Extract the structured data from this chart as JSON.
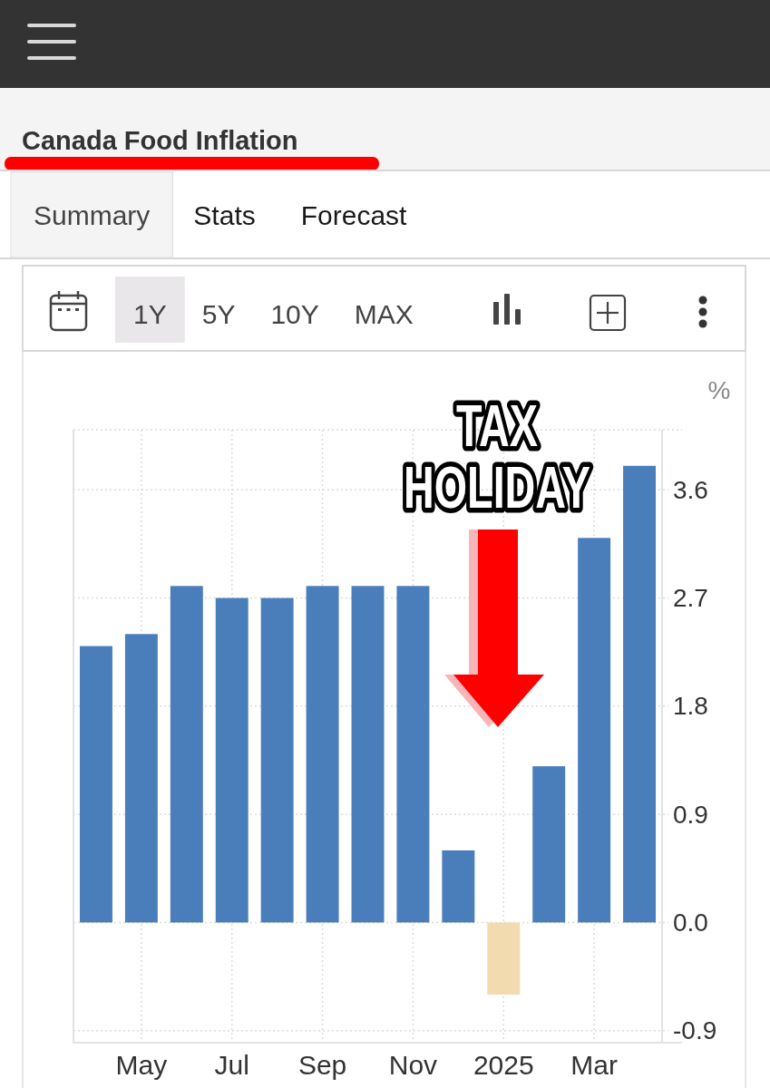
{
  "chart_data": {
    "type": "bar",
    "title": "Canada Food Inflation",
    "ylabel": "%",
    "categories": [
      null,
      "May",
      null,
      "Jul",
      null,
      "Sep",
      null,
      "Nov",
      null,
      "2025",
      null,
      "Mar",
      null
    ],
    "values": [
      2.3,
      2.4,
      2.8,
      2.7,
      2.7,
      2.8,
      2.8,
      2.8,
      0.6,
      -0.6,
      1.3,
      3.2,
      3.8
    ],
    "colors": [
      "#4a7ebb",
      "#4a7ebb",
      "#4a7ebb",
      "#4a7ebb",
      "#4a7ebb",
      "#4a7ebb",
      "#4a7ebb",
      "#4a7ebb",
      "#4a7ebb",
      "#f3dbb0",
      "#4a7ebb",
      "#4a7ebb",
      "#4a7ebb"
    ],
    "ylim": [
      -1.0,
      4.1
    ],
    "yticks": [
      -0.9,
      {
        "value": 0,
        "label": "0.0"
      },
      0.9,
      1.8,
      2.7,
      3.6
    ],
    "grid": true,
    "annotations": [
      "TAX HOLIDAY",
      "Summary",
      "Stats",
      "Forecast",
      "1Y",
      "5Y",
      "10Y",
      "MAX"
    ]
  }
}
